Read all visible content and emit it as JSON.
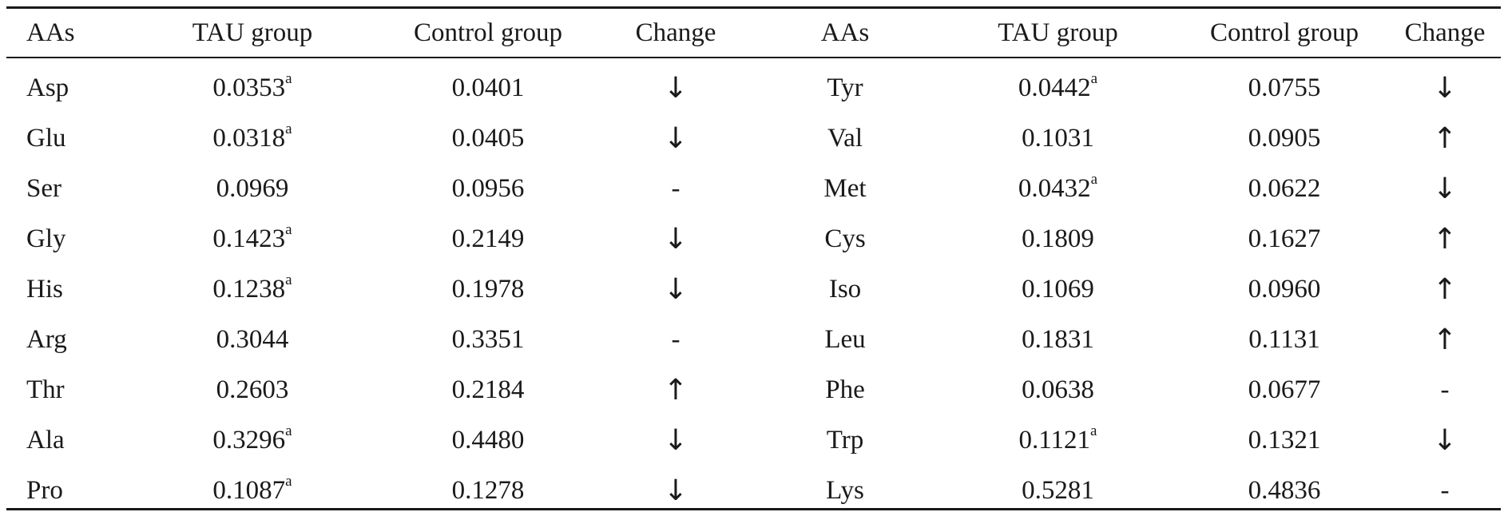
{
  "headers": [
    "AAs",
    "TAU group",
    "Control group",
    "Change",
    "AAs",
    "TAU group",
    "Control group",
    "Change"
  ],
  "rows": [
    {
      "aa1": "Asp",
      "tau1": "0.0353",
      "tau1_sup": "a",
      "ctrl1": "0.0401",
      "chg1": "↓",
      "aa2": "Tyr",
      "tau2": "0.0442",
      "tau2_sup": "a",
      "ctrl2": "0.0755",
      "chg2": "↓"
    },
    {
      "aa1": "Glu",
      "tau1": "0.0318",
      "tau1_sup": "a",
      "ctrl1": "0.0405",
      "chg1": "↓",
      "aa2": "Val",
      "tau2": "0.1031",
      "tau2_sup": "",
      "ctrl2": "0.0905",
      "chg2": "↑"
    },
    {
      "aa1": "Ser",
      "tau1": "0.0969",
      "tau1_sup": "",
      "ctrl1": "0.0956",
      "chg1": "-",
      "aa2": "Met",
      "tau2": "0.0432",
      "tau2_sup": "a",
      "ctrl2": "0.0622",
      "chg2": "↓"
    },
    {
      "aa1": "Gly",
      "tau1": "0.1423",
      "tau1_sup": "a",
      "ctrl1": "0.2149",
      "chg1": "↓",
      "aa2": "Cys",
      "tau2": "0.1809",
      "tau2_sup": "",
      "ctrl2": "0.1627",
      "chg2": "↑"
    },
    {
      "aa1": "His",
      "tau1": "0.1238",
      "tau1_sup": "a",
      "ctrl1": "0.1978",
      "chg1": "↓",
      "aa2": "Iso",
      "tau2": "0.1069",
      "tau2_sup": "",
      "ctrl2": "0.0960",
      "chg2": "↑"
    },
    {
      "aa1": "Arg",
      "tau1": "0.3044",
      "tau1_sup": "",
      "ctrl1": "0.3351",
      "chg1": "-",
      "aa2": "Leu",
      "tau2": "0.1831",
      "tau2_sup": "",
      "ctrl2": "0.1131",
      "chg2": "↑"
    },
    {
      "aa1": "Thr",
      "tau1": "0.2603",
      "tau1_sup": "",
      "ctrl1": "0.2184",
      "chg1": "↑",
      "aa2": "Phe",
      "tau2": "0.0638",
      "tau2_sup": "",
      "ctrl2": "0.0677",
      "chg2": "-"
    },
    {
      "aa1": "Ala",
      "tau1": "0.3296",
      "tau1_sup": "a",
      "ctrl1": "0.4480",
      "chg1": "↓",
      "aa2": "Trp",
      "tau2": "0.1121",
      "tau2_sup": "a",
      "ctrl2": "0.1321",
      "chg2": "↓"
    },
    {
      "aa1": "Pro",
      "tau1": "0.1087",
      "tau1_sup": "a",
      "ctrl1": "0.1278",
      "chg1": "↓",
      "aa2": "Lys",
      "tau2": "0.5281",
      "tau2_sup": "",
      "ctrl2": "0.4836",
      "chg2": "-"
    }
  ]
}
